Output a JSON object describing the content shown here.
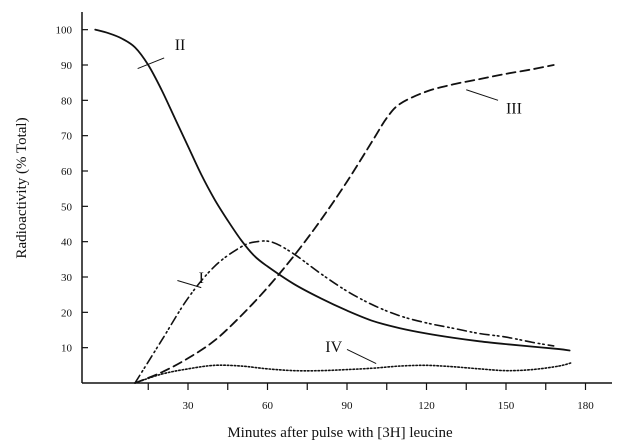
{
  "chart_data": {
    "type": "line",
    "title": "",
    "xlabel": "Minutes after pulse with [3H] leucine",
    "ylabel": "Radioactivity (% Total)",
    "xlim": [
      -10,
      190
    ],
    "ylim": [
      0,
      105
    ],
    "x_ticks": [
      30,
      60,
      90,
      120,
      150,
      180
    ],
    "y_ticks": [
      10,
      20,
      30,
      40,
      50,
      60,
      70,
      80,
      90,
      100
    ],
    "grid": false,
    "legend": "none",
    "series": [
      {
        "name": "I",
        "style": "dash-dot-dot",
        "x": [
          10,
          20,
          30,
          40,
          50,
          56,
          62,
          70,
          80,
          90,
          100,
          110,
          120,
          130,
          140,
          150,
          160,
          168
        ],
        "y": [
          0,
          12,
          24,
          33,
          38.5,
          40,
          39.8,
          36.5,
          31,
          26,
          22,
          19,
          17,
          15.5,
          14,
          13,
          11.5,
          10.5
        ]
      },
      {
        "name": "II",
        "style": "solid",
        "x": [
          -5,
          0,
          5,
          10,
          15,
          20,
          25,
          30,
          35,
          40,
          45,
          50,
          55,
          60,
          70,
          80,
          90,
          100,
          110,
          120,
          130,
          140,
          150,
          160,
          170,
          174
        ],
        "y": [
          100,
          99,
          97.5,
          95,
          90,
          83,
          75,
          67,
          59,
          52,
          46,
          40.5,
          36,
          33,
          28,
          24,
          20.5,
          17.5,
          15.5,
          14,
          12.8,
          11.8,
          11,
          10.3,
          9.6,
          9.2
        ]
      },
      {
        "name": "III",
        "style": "dashed",
        "x": [
          10,
          20,
          30,
          40,
          50,
          60,
          70,
          80,
          90,
          100,
          105,
          110,
          120,
          130,
          140,
          150,
          160,
          168
        ],
        "y": [
          0,
          3,
          7,
          12,
          19,
          27,
          36,
          46,
          57,
          69,
          75,
          79,
          82.5,
          84.5,
          86,
          87.5,
          88.8,
          90
        ]
      },
      {
        "name": "IV",
        "style": "dotted",
        "x": [
          10,
          20,
          30,
          40,
          50,
          60,
          70,
          80,
          90,
          100,
          110,
          120,
          130,
          140,
          150,
          160,
          170,
          175
        ],
        "y": [
          0,
          2.5,
          4,
          5,
          4.8,
          4,
          3.5,
          3.5,
          3.8,
          4.2,
          4.8,
          5,
          4.6,
          4,
          3.5,
          3.8,
          4.8,
          5.8
        ]
      }
    ],
    "series_labels": [
      {
        "text": "I",
        "series": "I"
      },
      {
        "text": "II",
        "series": "II"
      },
      {
        "text": "III",
        "series": "III"
      },
      {
        "text": "IV",
        "series": "IV"
      }
    ]
  }
}
